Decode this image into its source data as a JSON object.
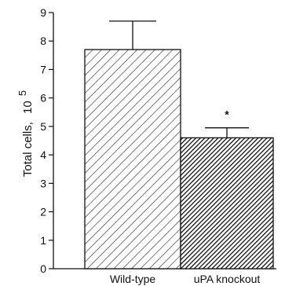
{
  "chart_data": {
    "type": "bar",
    "categories": [
      "Wild-type",
      "uPA knockout"
    ],
    "values": [
      7.7,
      4.6
    ],
    "errors": [
      1.0,
      0.35
    ],
    "significance": [
      "",
      "*"
    ],
    "xlabel": "",
    "ylabel": "Total cells,",
    "ylabel_exponent": "5",
    "ylabel_base": "10",
    "ylim": [
      0,
      9
    ],
    "yticks": [
      0,
      1,
      2,
      3,
      4,
      5,
      6,
      7,
      8,
      9
    ],
    "grid": false,
    "bar_fills": [
      "sparse-diagonal-hatch",
      "dense-diagonal-hatch"
    ]
  }
}
